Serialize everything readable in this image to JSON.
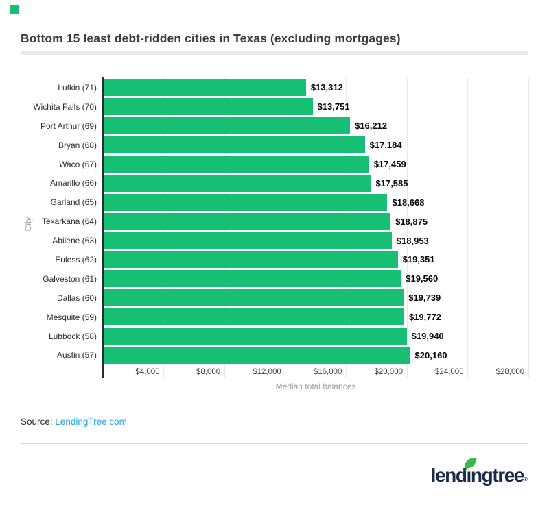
{
  "colors": {
    "bar": "#17bf74",
    "brand_square": "#17bf74",
    "axis_line": "#2b2b2b",
    "gridline": "#e9e9e9",
    "header_divider": "#e9e9e9",
    "bottom_divider": "#d8d8d8",
    "title_text": "#3c3c3c",
    "muted_text": "#9e9e9e",
    "source_link": "#29a5e0",
    "logo_navy": "#1a2b49",
    "leaf_green": "#3cb54a"
  },
  "header": {
    "title": "Bottom 15 least debt-ridden cities in Texas (excluding mortgages)"
  },
  "chart_data": {
    "type": "bar",
    "orientation": "horizontal",
    "title": "Bottom 15 least debt-ridden cities in Texas (excluding mortgages)",
    "categories": [
      "Lufkin (71)",
      "Wichita Falls (70)",
      "Port Arthur (69)",
      "Bryan (68)",
      "Waco (67)",
      "Amarillo (66)",
      "Garland (65)",
      "Texarkana (64)",
      "Abilene (63)",
      "Euless (62)",
      "Galveston (61)",
      "Dallas (60)",
      "Mesquite (59)",
      "Lubbock (58)",
      "Austin (57)"
    ],
    "values": [
      13312,
      13751,
      16212,
      17184,
      17459,
      17585,
      18668,
      18875,
      18953,
      19351,
      19560,
      19739,
      19772,
      19940,
      20160
    ],
    "value_labels": [
      "$13,312",
      "$13,751",
      "$16,212",
      "$17,184",
      "$17,459",
      "$17,585",
      "$18,668",
      "$18,875",
      "$18,953",
      "$19,351",
      "$19,560",
      "$19,739",
      "$19,772",
      "$19,940",
      "$20,160"
    ],
    "xlabel": "Median total balances",
    "ylabel": "City",
    "x_ticks": [
      {
        "value": 4000,
        "label": "$4,000"
      },
      {
        "value": 8000,
        "label": "$8,000"
      },
      {
        "value": 12000,
        "label": "$12,000"
      },
      {
        "value": 16000,
        "label": "$16,000"
      },
      {
        "value": 20000,
        "label": "$20,000"
      },
      {
        "value": 24000,
        "label": "$24,000"
      },
      {
        "value": 28000,
        "label": "$28,000"
      }
    ],
    "xlim": [
      0,
      29300
    ],
    "grid": true,
    "legend": false
  },
  "footer": {
    "source_label": "Source:",
    "source_link_text": "LendingTree.com",
    "logo_text": "lendingtree",
    "registered": "®"
  }
}
